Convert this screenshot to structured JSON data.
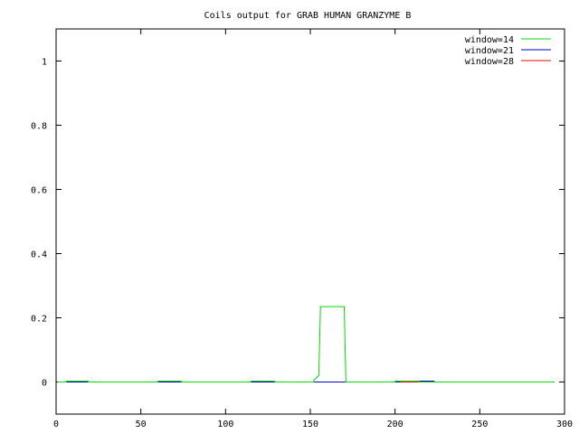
{
  "chart_data": {
    "type": "line",
    "title": "Coils output for GRAB HUMAN GRANZYME B",
    "xlabel": "",
    "ylabel": "",
    "xlim": [
      0,
      300
    ],
    "ylim": [
      -0.1,
      1.1
    ],
    "x_ticks": [
      0,
      50,
      100,
      150,
      200,
      250,
      300
    ],
    "y_ticks": [
      0,
      0.2,
      0.4,
      0.6,
      0.8,
      1
    ],
    "y_tick_labels": [
      "0",
      "0.2",
      "0.4",
      "0.6",
      "0.8",
      "1"
    ],
    "grid": false,
    "legend_position": "top-right",
    "series": [
      {
        "name": "window=14",
        "color": "#00dd00",
        "points": [
          [
            1,
            0
          ],
          [
            6,
            0
          ],
          [
            6,
            0.003
          ],
          [
            19,
            0.003
          ],
          [
            19,
            0
          ],
          [
            60,
            0
          ],
          [
            60,
            0.003
          ],
          [
            74,
            0.003
          ],
          [
            74,
            0
          ],
          [
            115,
            0
          ],
          [
            115,
            0.003
          ],
          [
            129,
            0.003
          ],
          [
            129,
            0
          ],
          [
            152,
            0
          ],
          [
            152,
            0.005
          ],
          [
            155,
            0.02
          ],
          [
            156,
            0.235
          ],
          [
            170,
            0.235
          ],
          [
            171,
            0.005
          ],
          [
            171,
            0
          ],
          [
            200,
            0
          ],
          [
            200,
            0.003
          ],
          [
            214,
            0.003
          ],
          [
            214,
            0
          ],
          [
            294,
            0
          ]
        ]
      },
      {
        "name": "window=21",
        "color": "#0000cc",
        "points": [
          [
            1,
            0
          ],
          [
            203,
            0
          ],
          [
            203,
            0.003
          ],
          [
            223,
            0.003
          ],
          [
            223,
            0
          ],
          [
            294,
            0
          ]
        ]
      },
      {
        "name": "window=28",
        "color": "#ff0000",
        "points": [
          [
            1,
            0
          ],
          [
            294,
            0
          ]
        ]
      }
    ]
  }
}
